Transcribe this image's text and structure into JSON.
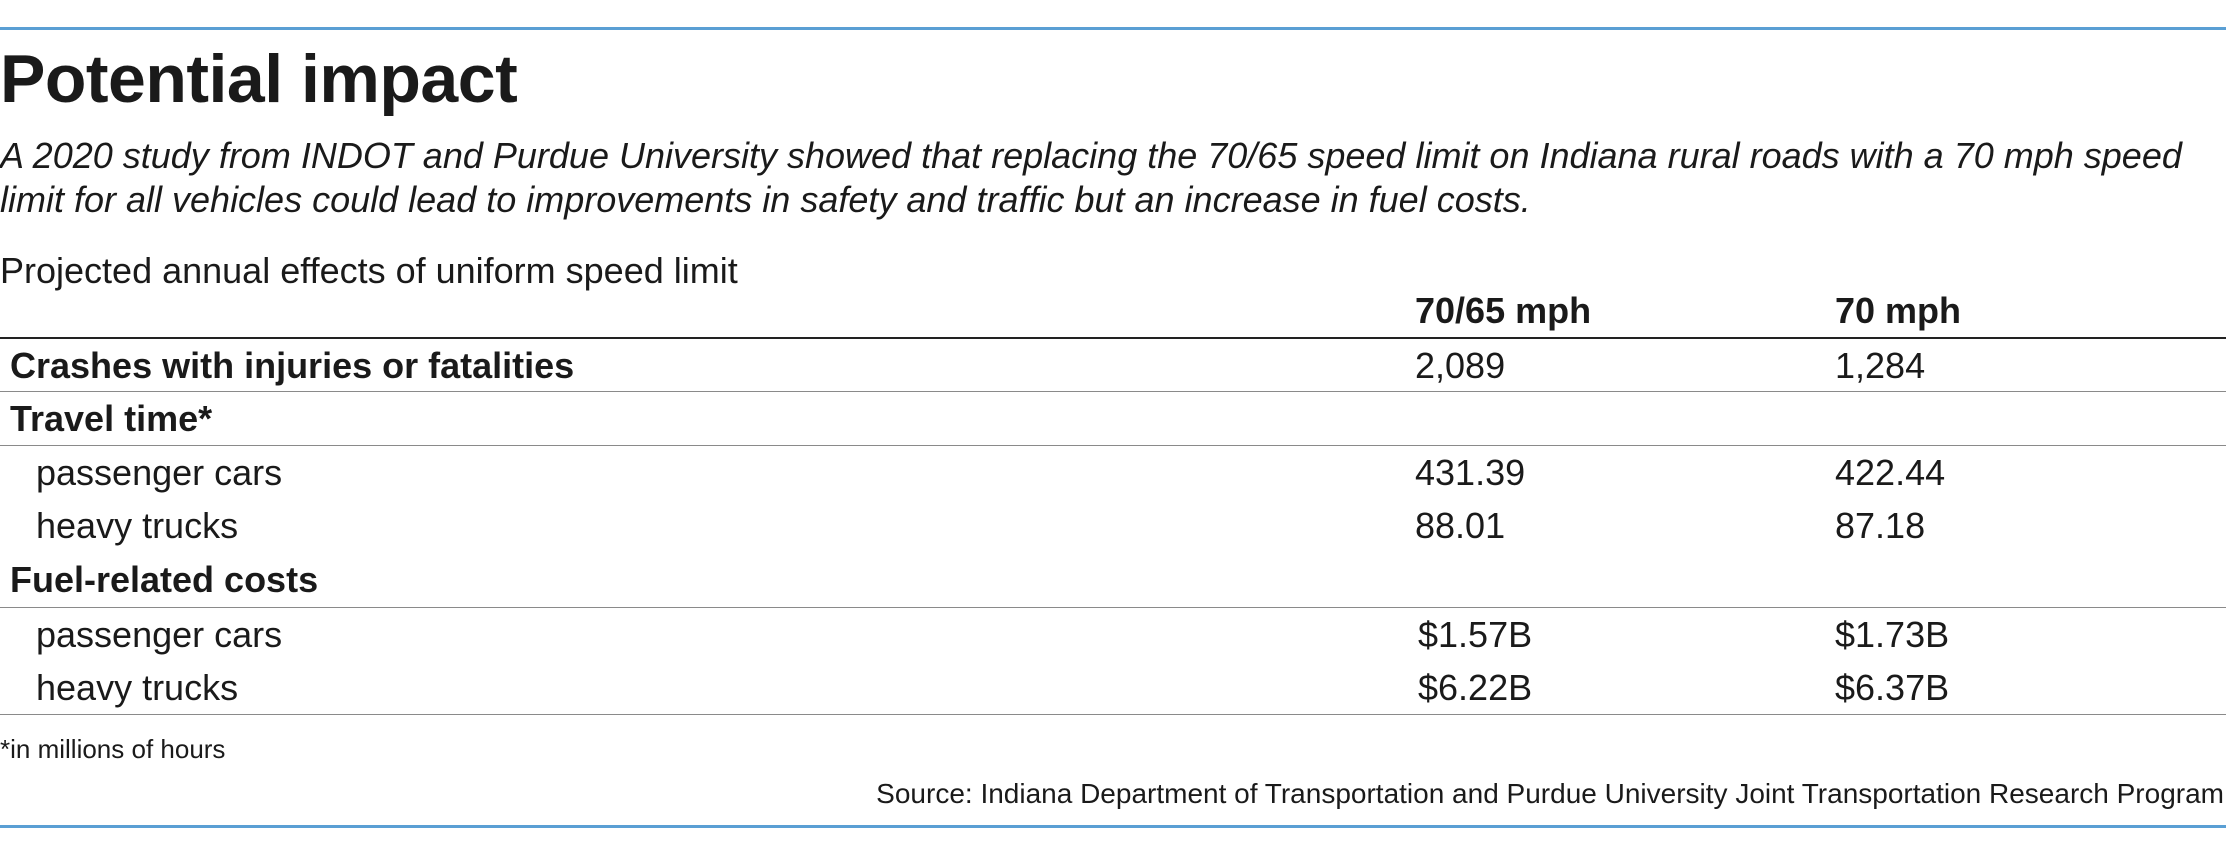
{
  "colors": {
    "rule_accent": "#5a9fd4",
    "text": "#1a1a1a",
    "row_divider": "#8a8a8a"
  },
  "title": "Potential impact",
  "subtitle": "A 2020 study from INDOT and Purdue University showed that replacing the 70/65 speed limit on Indiana rural roads with a 70 mph speed limit for all vehicles could lead to improvements in safety and traffic but an increase in fuel costs.",
  "footnote": "*in millions of hours",
  "source": "Source: Indiana Department of Transportation and Purdue University Joint Transportation Research Program",
  "chart_data": {
    "type": "table",
    "title": "Projected annual effects of uniform speed limit",
    "columns": [
      "70/65 mph",
      "70 mph"
    ],
    "rows": [
      {
        "label": "Crashes with injuries or fatalities",
        "values": [
          "2,089",
          "1,284"
        ]
      },
      {
        "label": "Travel time*",
        "values": [
          "",
          ""
        ]
      },
      {
        "label": "passenger cars",
        "values": [
          "431.39",
          "422.44"
        ]
      },
      {
        "label": "heavy trucks",
        "values": [
          "88.01",
          "87.18"
        ]
      },
      {
        "label": "Fuel-related costs",
        "values": [
          "",
          ""
        ]
      },
      {
        "label": "passenger cars",
        "values": [
          "$1.57B",
          "$1.73B"
        ]
      },
      {
        "label": "heavy trucks",
        "values": [
          "$6.22B",
          "$6.37B"
        ]
      }
    ]
  }
}
